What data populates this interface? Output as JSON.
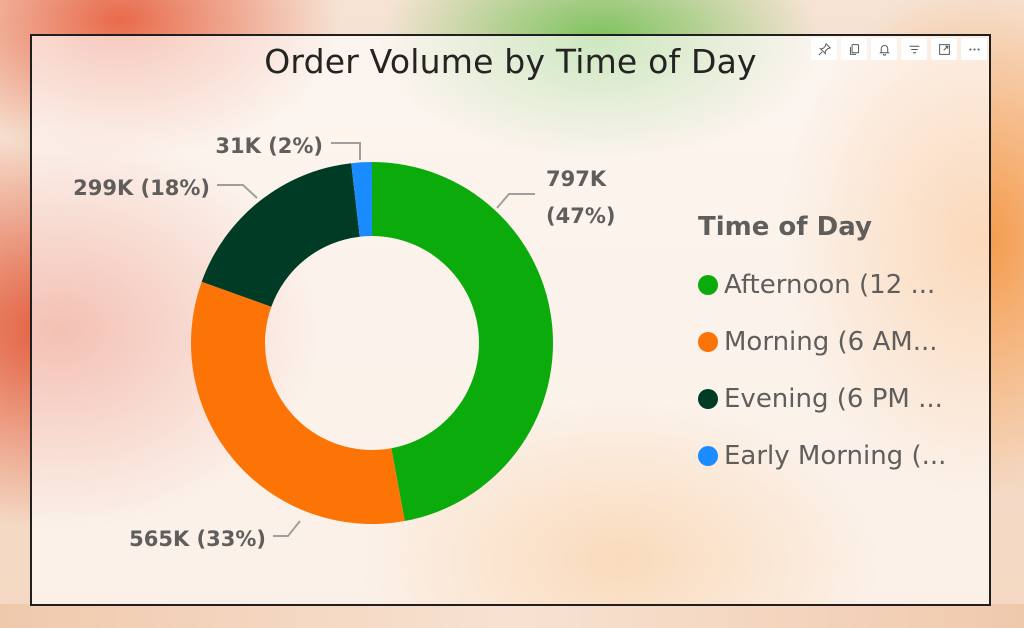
{
  "visual": {
    "title": "Order Volume by Time of Day",
    "toolbar": [
      {
        "name": "pin-icon"
      },
      {
        "name": "copy-icon"
      },
      {
        "name": "bell-icon"
      },
      {
        "name": "filter-icon"
      },
      {
        "name": "focus-mode-icon"
      },
      {
        "name": "more-options-icon"
      }
    ]
  },
  "chart_data": {
    "type": "pie",
    "subtype": "donut",
    "title": "Order Volume by Time of Day",
    "legend_title": "Time of Day",
    "legend_position": "right",
    "series": [
      {
        "name": "Afternoon (12 ...",
        "value": 797,
        "unit": "K",
        "display_value": "797K",
        "percent": "(47%)",
        "color": "#0aab0a"
      },
      {
        "name": "Morning (6 AM...",
        "value": 565,
        "unit": "K",
        "display_value": "565K",
        "percent": "(33%)",
        "color": "#fb7405"
      },
      {
        "name": "Evening (6 PM ...",
        "value": 299,
        "unit": "K",
        "display_value": "299K",
        "percent": "(18%)",
        "color": "#003b25"
      },
      {
        "name": "Early Morning (...",
        "value": 31,
        "unit": "K",
        "display_value": "31K",
        "percent": "(2%)",
        "color": "#1a8cff"
      }
    ]
  }
}
